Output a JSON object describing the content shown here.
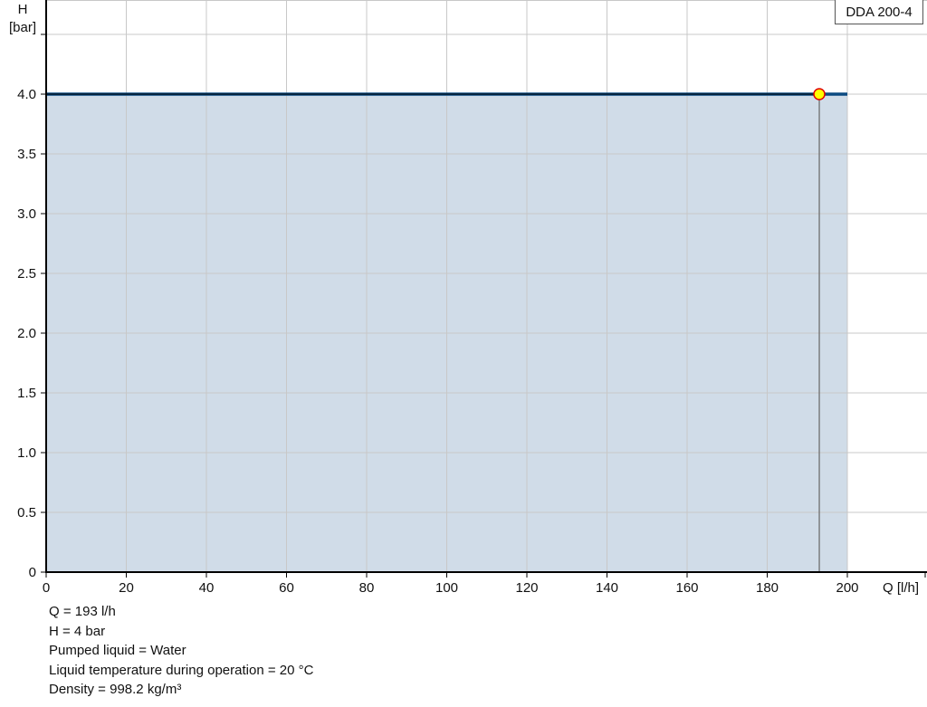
{
  "chart_data": {
    "type": "area",
    "title": "",
    "xlabel": "Q [l/h]",
    "ylabel_line1": "H",
    "ylabel_line2": "[bar]",
    "xlim": [
      0,
      220
    ],
    "ylim": [
      0,
      4.8
    ],
    "xticks": [
      0,
      20,
      40,
      60,
      80,
      100,
      120,
      140,
      160,
      180,
      200
    ],
    "xtick_labels": [
      "0",
      "20",
      "40",
      "60",
      "80",
      "100",
      "120",
      "140",
      "160",
      "180",
      "200"
    ],
    "yticks": [
      0,
      0.5,
      1.0,
      1.5,
      2.0,
      2.5,
      3.0,
      3.5,
      4.0
    ],
    "ytick_labels": [
      "0",
      "0.5",
      "1.0",
      "1.5",
      "2.0",
      "2.5",
      "3.0",
      "3.5",
      "4.0"
    ],
    "ygrid_extra": [
      4.5
    ],
    "grid": true,
    "series": [
      {
        "name": "DDA 200-4",
        "x": [
          0,
          200
        ],
        "y": [
          4.0,
          4.0
        ],
        "color": "#0b4a80",
        "fill": "#d0dce8"
      }
    ],
    "operating_point": {
      "x": 193,
      "y": 4.0,
      "fill": "#ffff00",
      "stroke": "#e00000"
    },
    "legend": {
      "text": "DDA 200-4",
      "placement": "top-right"
    }
  },
  "info_lines": [
    "Q = 193 l/h",
    "H = 4 bar",
    "Pumped liquid = Water",
    "Liquid temperature during operation = 20 °C",
    "Density = 998.2 kg/m³"
  ]
}
